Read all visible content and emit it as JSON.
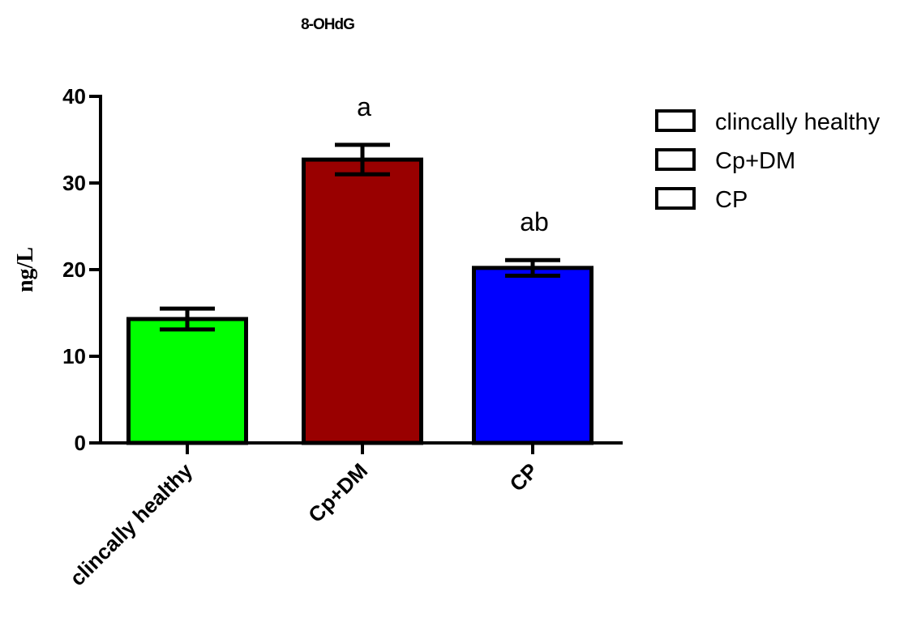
{
  "chart_data": {
    "type": "bar",
    "title": "8-OHdG",
    "xlabel": "",
    "ylabel": "ng/L",
    "ylim": [
      0,
      40
    ],
    "yticks": [
      0,
      10,
      20,
      30,
      40
    ],
    "categories": [
      "clincally healthy",
      "Cp+DM",
      "CP"
    ],
    "values": [
      14.3,
      32.7,
      20.2
    ],
    "errors": [
      1.2,
      1.7,
      0.9
    ],
    "annotations": [
      "",
      "a",
      "ab"
    ],
    "colors": [
      "#00ff00",
      "#990000",
      "#0000ff"
    ],
    "legend": {
      "placement": "top-right",
      "entries": [
        "clincally healthy",
        "Cp+DM",
        "CP"
      ]
    },
    "grid": false
  }
}
